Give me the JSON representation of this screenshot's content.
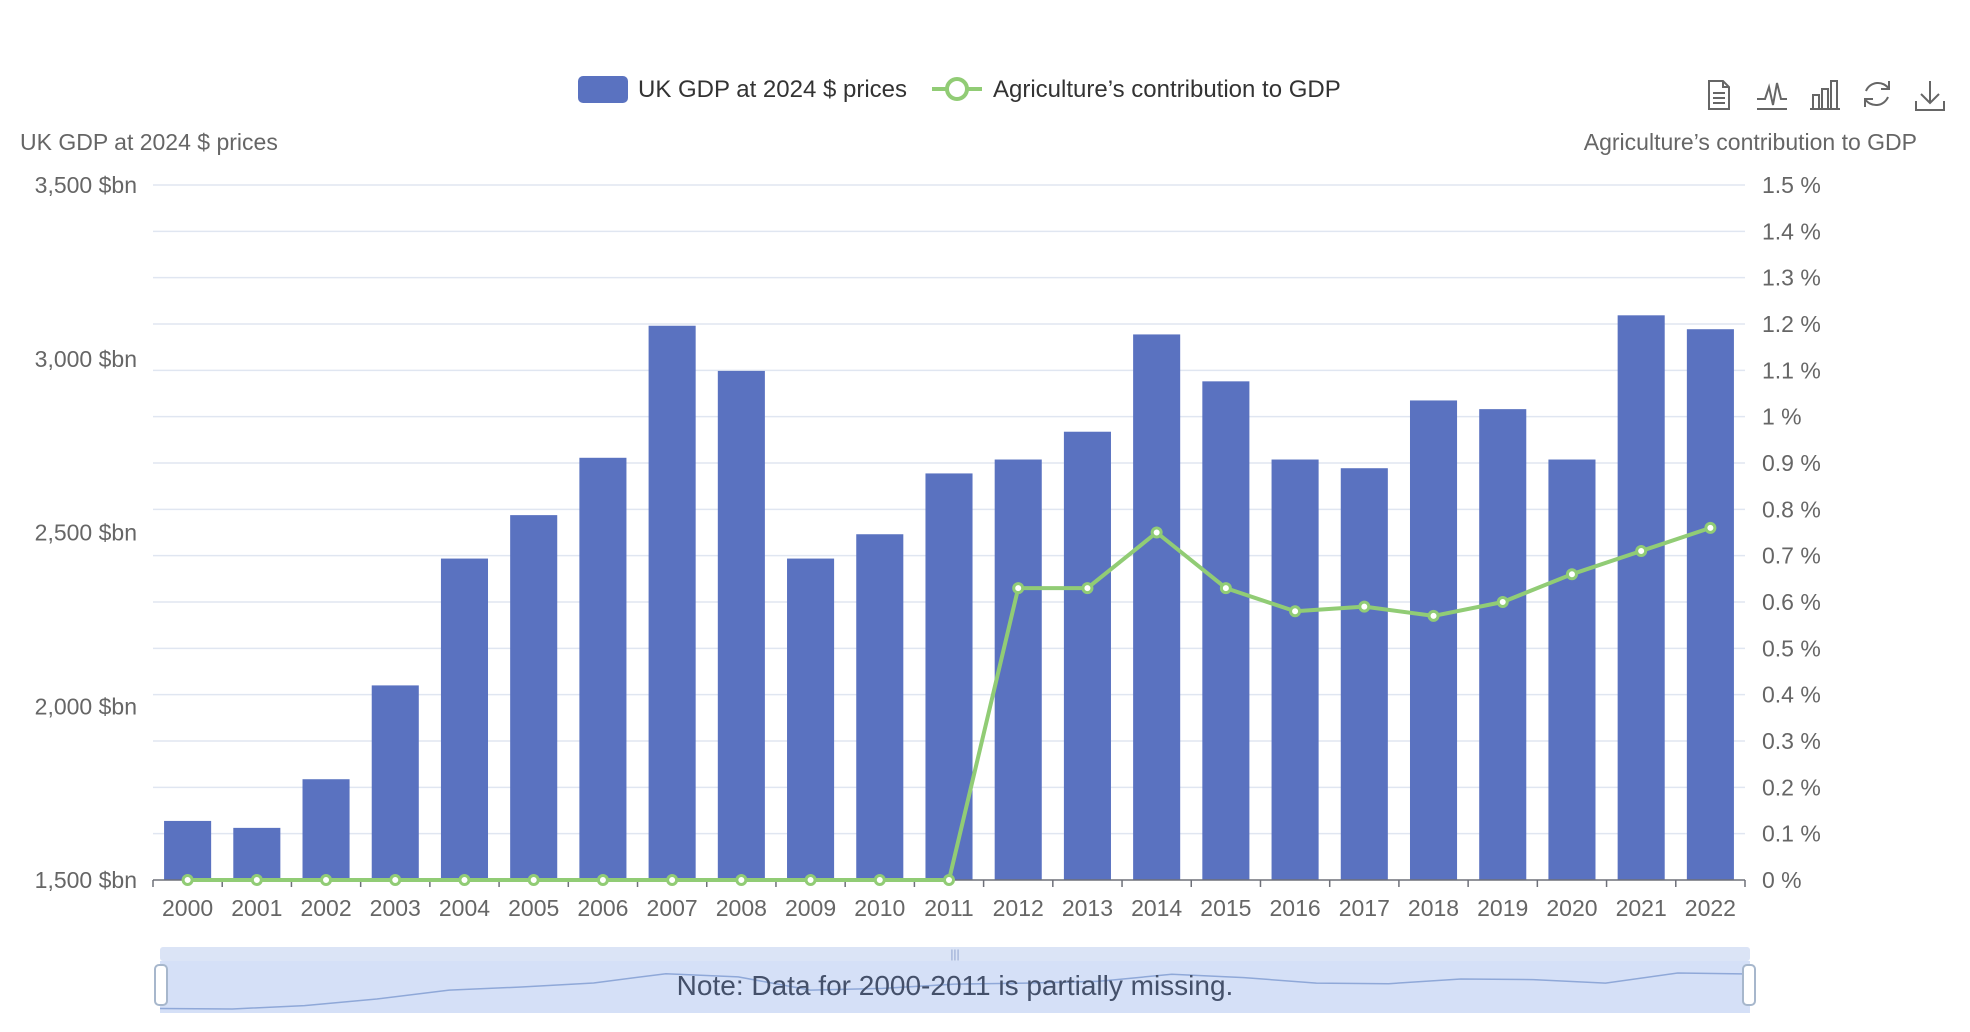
{
  "legend": {
    "bar_label": "UK GDP at 2024 $ prices",
    "line_label": "Agriculture’s contribution to GDP"
  },
  "toolbox": {
    "icons": [
      "data-view-icon",
      "line-chart-icon",
      "bar-chart-icon",
      "restore-icon",
      "download-icon"
    ]
  },
  "colors": {
    "bar": "#5a72c0",
    "line": "#91cc75",
    "grid": "#e0e6f1",
    "axis": "#6e7079",
    "zoom_fill": "#e2eaf9",
    "zoom_selected": "#d5e0f7",
    "zoom_handle": "#dbe4f6"
  },
  "note": "Note: Data for 2000-2011 is partially missing.",
  "chart_data": {
    "type": "bar",
    "xlabel": "",
    "categories": [
      "2000",
      "2001",
      "2002",
      "2003",
      "2004",
      "2005",
      "2006",
      "2007",
      "2008",
      "2009",
      "2010",
      "2011",
      "2012",
      "2013",
      "2014",
      "2015",
      "2016",
      "2017",
      "2018",
      "2019",
      "2020",
      "2021",
      "2022"
    ],
    "ylabel_left": "UK GDP at 2024 $ prices",
    "ylabel_right": "Agriculture’s contribution to GDP",
    "ylim_left": [
      1500,
      3500
    ],
    "ylim_right": [
      0,
      1.5
    ],
    "left_ticks": [
      "1,500 $bn",
      "2,000 $bn",
      "2,500 $bn",
      "3,000 $bn",
      "3,500 $bn"
    ],
    "right_ticks": [
      "0 %",
      "0.1 %",
      "0.2 %",
      "0.3 %",
      "0.4 %",
      "0.5 %",
      "0.6 %",
      "0.7 %",
      "0.8 %",
      "0.9 %",
      "1 %",
      "1.1 %",
      "1.2 %",
      "1.3 %",
      "1.4 %",
      "1.5 %"
    ],
    "grid": true,
    "legend_position": "top-center",
    "series": [
      {
        "name": "UK GDP at 2024 $ prices",
        "type": "bar",
        "axis": "left",
        "values": [
          1670,
          1650,
          1790,
          2060,
          2425,
          2550,
          2715,
          3095,
          2965,
          2425,
          2495,
          2670,
          2710,
          2790,
          3070,
          2935,
          2710,
          2685,
          2880,
          2855,
          2710,
          3125,
          3085
        ]
      },
      {
        "name": "Agriculture’s contribution to GDP",
        "type": "line",
        "axis": "right",
        "values": [
          0,
          0,
          0,
          0,
          0,
          0,
          0,
          0,
          0,
          0,
          0,
          0,
          0.63,
          0.63,
          0.75,
          0.63,
          0.58,
          0.59,
          0.57,
          0.6,
          0.66,
          0.71,
          0.76
        ]
      }
    ]
  }
}
